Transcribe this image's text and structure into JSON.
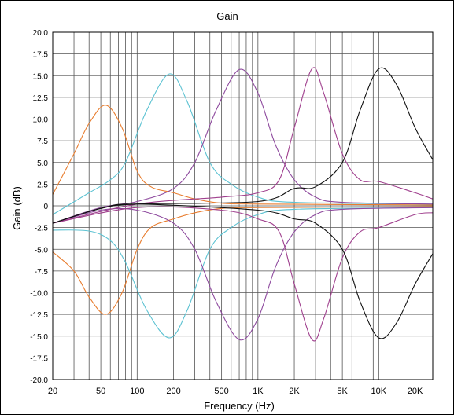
{
  "chart_data": {
    "type": "line",
    "title": "Gain",
    "xlabel": "Frequency (Hz)",
    "ylabel": "Gain (dB)",
    "x_scale": "log",
    "xlim": [
      20,
      28000
    ],
    "ylim": [
      -20,
      20
    ],
    "grid": true,
    "y_ticks": [
      "20.0",
      "17.5",
      "15.0",
      "12.5",
      "10.0",
      "7.5",
      "5.0",
      "2.5",
      "0",
      "-2.5",
      "-5.0",
      "-7.5",
      "-10.0",
      "-12.5",
      "-15.0",
      "-17.5",
      "-20.0"
    ],
    "x_ticks": [
      {
        "value": 20,
        "label": "20"
      },
      {
        "value": 50,
        "label": "50"
      },
      {
        "value": 100,
        "label": "100"
      },
      {
        "value": 200,
        "label": "200"
      },
      {
        "value": 500,
        "label": "500"
      },
      {
        "value": 1000,
        "label": "1K"
      },
      {
        "value": 2000,
        "label": "2K"
      },
      {
        "value": 5000,
        "label": "5K"
      },
      {
        "value": 10000,
        "label": "10K"
      },
      {
        "value": 20000,
        "label": "20K"
      }
    ],
    "series": [
      {
        "color": "#e87d2f",
        "points": [
          [
            20,
            1.3
          ],
          [
            30,
            6
          ],
          [
            40,
            9.5
          ],
          [
            55,
            11.6
          ],
          [
            75,
            9
          ],
          [
            100,
            4
          ],
          [
            130,
            2.2
          ],
          [
            200,
            1.5
          ],
          [
            300,
            0.8
          ],
          [
            500,
            0.3
          ],
          [
            1000,
            0.2
          ],
          [
            28000,
            0.1
          ]
        ]
      },
      {
        "color": "#e87d2f",
        "points": [
          [
            20,
            -5.3
          ],
          [
            30,
            -7.5
          ],
          [
            40,
            -10.5
          ],
          [
            55,
            -12.5
          ],
          [
            75,
            -10
          ],
          [
            100,
            -5
          ],
          [
            130,
            -2.5
          ],
          [
            200,
            -1.5
          ],
          [
            300,
            -0.8
          ],
          [
            500,
            -0.3
          ],
          [
            1000,
            -0.2
          ],
          [
            28000,
            -0.1
          ]
        ]
      },
      {
        "color": "#5cc2d2",
        "points": [
          [
            20,
            -1
          ],
          [
            40,
            1.5
          ],
          [
            60,
            3
          ],
          [
            80,
            5
          ],
          [
            120,
            11
          ],
          [
            185,
            15.2
          ],
          [
            260,
            12
          ],
          [
            400,
            5
          ],
          [
            600,
            2.5
          ],
          [
            1000,
            1
          ],
          [
            2000,
            0.4
          ],
          [
            28000,
            0.2
          ]
        ]
      },
      {
        "color": "#5cc2d2",
        "points": [
          [
            20,
            -2.8
          ],
          [
            40,
            -2.9
          ],
          [
            60,
            -4
          ],
          [
            80,
            -6.5
          ],
          [
            120,
            -12
          ],
          [
            185,
            -15.2
          ],
          [
            260,
            -12
          ],
          [
            400,
            -5
          ],
          [
            600,
            -2.5
          ],
          [
            1000,
            -1
          ],
          [
            2000,
            -0.4
          ],
          [
            28000,
            -0.2
          ]
        ]
      },
      {
        "color": "#8e4a9e",
        "points": [
          [
            20,
            -2
          ],
          [
            50,
            -0.2
          ],
          [
            100,
            0.5
          ],
          [
            200,
            2
          ],
          [
            300,
            5
          ],
          [
            450,
            11
          ],
          [
            700,
            15.7
          ],
          [
            1000,
            13
          ],
          [
            1400,
            7
          ],
          [
            2000,
            3
          ],
          [
            3000,
            1
          ],
          [
            5000,
            0.4
          ],
          [
            28000,
            0.2
          ]
        ]
      },
      {
        "color": "#8e4a9e",
        "points": [
          [
            20,
            -2
          ],
          [
            50,
            -0.5
          ],
          [
            100,
            -0.5
          ],
          [
            200,
            -2
          ],
          [
            300,
            -5
          ],
          [
            450,
            -11
          ],
          [
            700,
            -15.4
          ],
          [
            1000,
            -13
          ],
          [
            1400,
            -7
          ],
          [
            2000,
            -3
          ],
          [
            3000,
            -1
          ],
          [
            5000,
            -0.4
          ],
          [
            28000,
            -0.2
          ]
        ]
      },
      {
        "color": "#a0408e",
        "points": [
          [
            20,
            -2
          ],
          [
            100,
            0.2
          ],
          [
            500,
            1
          ],
          [
            1000,
            1.5
          ],
          [
            1500,
            3
          ],
          [
            2000,
            9
          ],
          [
            2800,
            15.8
          ],
          [
            3500,
            13
          ],
          [
            5000,
            6
          ],
          [
            7000,
            3
          ],
          [
            10000,
            2.8
          ],
          [
            20000,
            1.5
          ],
          [
            28000,
            0.8
          ]
        ]
      },
      {
        "color": "#a0408e",
        "points": [
          [
            20,
            -2
          ],
          [
            100,
            -0.2
          ],
          [
            500,
            -0.5
          ],
          [
            1000,
            -1.5
          ],
          [
            1500,
            -3
          ],
          [
            2000,
            -9
          ],
          [
            2800,
            -15.4
          ],
          [
            3500,
            -13
          ],
          [
            5000,
            -6
          ],
          [
            7000,
            -3
          ],
          [
            10000,
            -2.5
          ],
          [
            20000,
            -1
          ],
          [
            28000,
            -0.8
          ]
        ]
      },
      {
        "color": "#111111",
        "points": [
          [
            20,
            -2
          ],
          [
            50,
            -0.3
          ],
          [
            100,
            0.2
          ],
          [
            1000,
            0.5
          ],
          [
            2000,
            2
          ],
          [
            3000,
            2.2
          ],
          [
            5000,
            5
          ],
          [
            7000,
            11
          ],
          [
            10000,
            15.8
          ],
          [
            14000,
            14
          ],
          [
            20000,
            9
          ],
          [
            28000,
            5.3
          ]
        ]
      },
      {
        "color": "#111111",
        "points": [
          [
            20,
            -2
          ],
          [
            50,
            -0.3
          ],
          [
            100,
            0.2
          ],
          [
            1000,
            -0.5
          ],
          [
            2000,
            -1.5
          ],
          [
            3000,
            -2
          ],
          [
            5000,
            -5
          ],
          [
            7000,
            -11
          ],
          [
            10000,
            -15.2
          ],
          [
            14000,
            -13.5
          ],
          [
            20000,
            -9
          ],
          [
            28000,
            -5.5
          ]
        ]
      }
    ]
  }
}
